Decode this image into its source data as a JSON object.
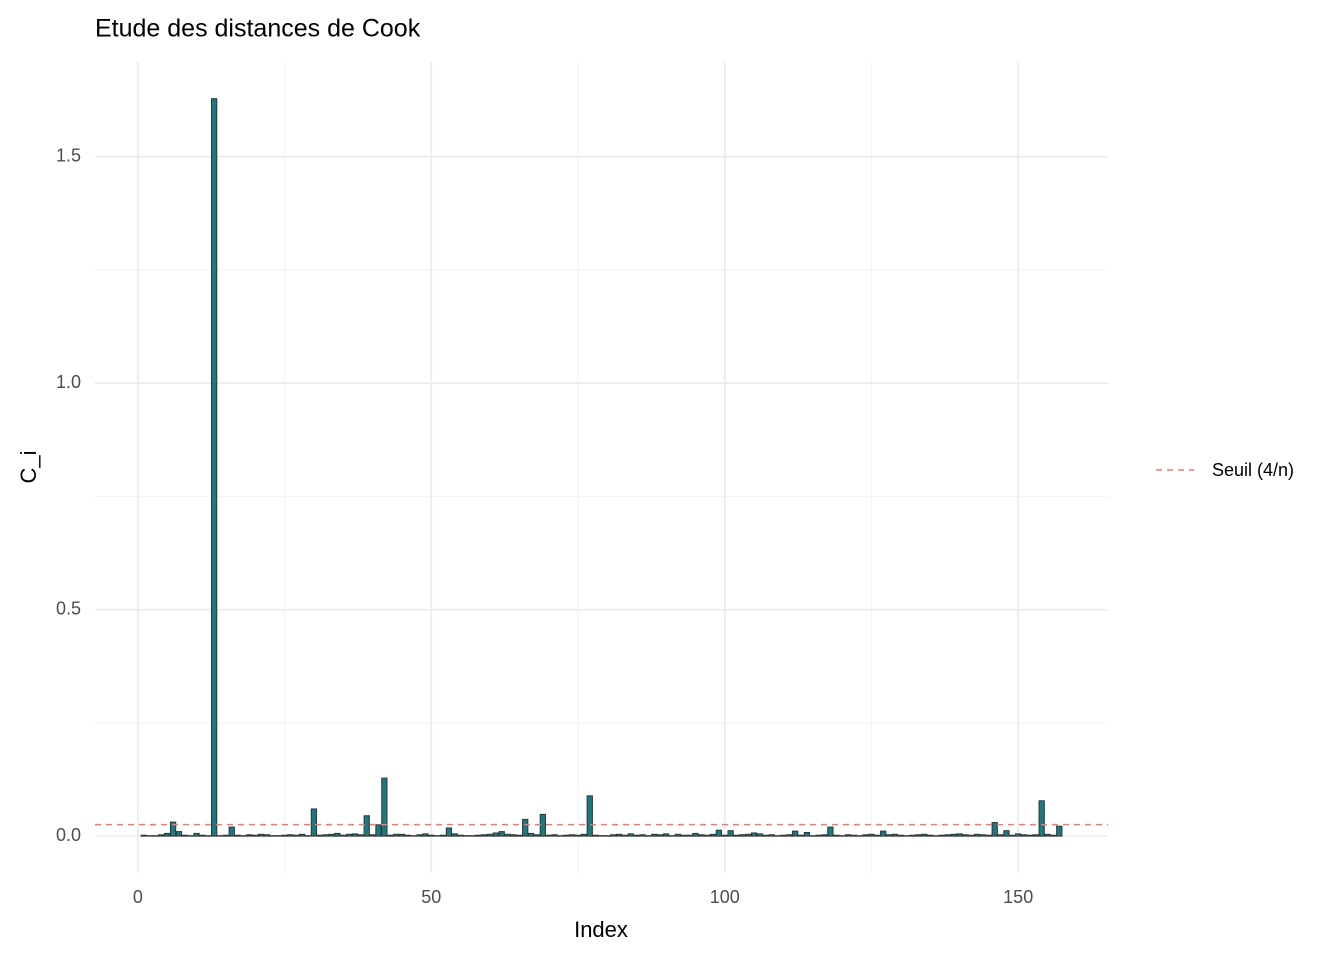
{
  "chart_data": {
    "type": "bar",
    "title": "Etude des distances de Cook",
    "x_label": "Index",
    "y_label": "C_i",
    "x": [
      1,
      2,
      3,
      4,
      5,
      6,
      7,
      8,
      9,
      10,
      11,
      12,
      13,
      14,
      15,
      16,
      17,
      18,
      19,
      20,
      21,
      22,
      23,
      24,
      25,
      26,
      27,
      28,
      29,
      30,
      31,
      32,
      33,
      34,
      35,
      36,
      37,
      38,
      39,
      40,
      41,
      42,
      43,
      44,
      45,
      46,
      47,
      48,
      49,
      50,
      51,
      52,
      53,
      54,
      55,
      56,
      57,
      58,
      59,
      60,
      61,
      62,
      63,
      64,
      65,
      66,
      67,
      68,
      69,
      70,
      71,
      72,
      73,
      74,
      75,
      76,
      77,
      78,
      79,
      80,
      81,
      82,
      83,
      84,
      85,
      86,
      87,
      88,
      89,
      90,
      91,
      92,
      93,
      94,
      95,
      96,
      97,
      98,
      99,
      100,
      101,
      102,
      103,
      104,
      105,
      106,
      107,
      108,
      109,
      110,
      111,
      112,
      113,
      114,
      115,
      116,
      117,
      118,
      119,
      120,
      121,
      122,
      123,
      124,
      125,
      126,
      127,
      128,
      129,
      130,
      131,
      132,
      133,
      134,
      135,
      136,
      137,
      138,
      139,
      140,
      141,
      142,
      143,
      144,
      145,
      146,
      147,
      148,
      149,
      150,
      151,
      152,
      153,
      154,
      155,
      156,
      157
    ],
    "values": [
      0.002,
      0.001,
      0.001,
      0.003,
      0.006,
      0.031,
      0.01,
      0.002,
      0.001,
      0.006,
      0.002,
      0.001,
      1.628,
      0.001,
      0.002,
      0.02,
      0.002,
      0.001,
      0.003,
      0.002,
      0.004,
      0.003,
      0.001,
      0.001,
      0.002,
      0.003,
      0.002,
      0.004,
      0.001,
      0.06,
      0.002,
      0.003,
      0.004,
      0.006,
      0.002,
      0.004,
      0.005,
      0.003,
      0.045,
      0.003,
      0.025,
      0.128,
      0.002,
      0.004,
      0.004,
      0.002,
      0.001,
      0.003,
      0.005,
      0.002,
      0.001,
      0.002,
      0.018,
      0.005,
      0.002,
      0.001,
      0.001,
      0.002,
      0.003,
      0.004,
      0.007,
      0.01,
      0.004,
      0.003,
      0.002,
      0.037,
      0.006,
      0.003,
      0.048,
      0.002,
      0.003,
      0.001,
      0.002,
      0.003,
      0.002,
      0.004,
      0.089,
      0.002,
      0.001,
      0.001,
      0.003,
      0.004,
      0.002,
      0.005,
      0.002,
      0.003,
      0.001,
      0.004,
      0.003,
      0.005,
      0.001,
      0.004,
      0.002,
      0.002,
      0.006,
      0.003,
      0.002,
      0.004,
      0.013,
      0.002,
      0.012,
      0.002,
      0.003,
      0.004,
      0.007,
      0.005,
      0.002,
      0.003,
      0.001,
      0.002,
      0.003,
      0.011,
      0.002,
      0.008,
      0.001,
      0.002,
      0.003,
      0.02,
      0.002,
      0.001,
      0.003,
      0.002,
      0.001,
      0.003,
      0.004,
      0.002,
      0.011,
      0.003,
      0.004,
      0.002,
      0.001,
      0.002,
      0.003,
      0.004,
      0.002,
      0.001,
      0.002,
      0.003,
      0.004,
      0.005,
      0.003,
      0.002,
      0.004,
      0.003,
      0.002,
      0.03,
      0.003,
      0.012,
      0.002,
      0.005,
      0.003,
      0.002,
      0.003,
      0.078,
      0.004,
      0.002,
      0.022
    ],
    "color": "#1a7a80",
    "edge_color": "#333333",
    "xlim": [
      -7.3,
      165.3
    ],
    "ylim": [
      -0.0814,
      1.709
    ],
    "xticks": [
      0,
      50,
      100,
      150
    ],
    "yticks": [
      {
        "value": 0,
        "label": "0.0"
      },
      0.5,
      {
        "value": 1,
        "label": "1.0"
      },
      1.5
    ],
    "x_minor_grid": [
      25,
      75,
      125
    ],
    "y_minor_grid": [
      0.25,
      0.75,
      1.25
    ],
    "grid": true,
    "hline": {
      "value": 0.0255,
      "label": "Seuil (4/n)",
      "color": "#f8766d"
    },
    "legend_position": "right"
  }
}
